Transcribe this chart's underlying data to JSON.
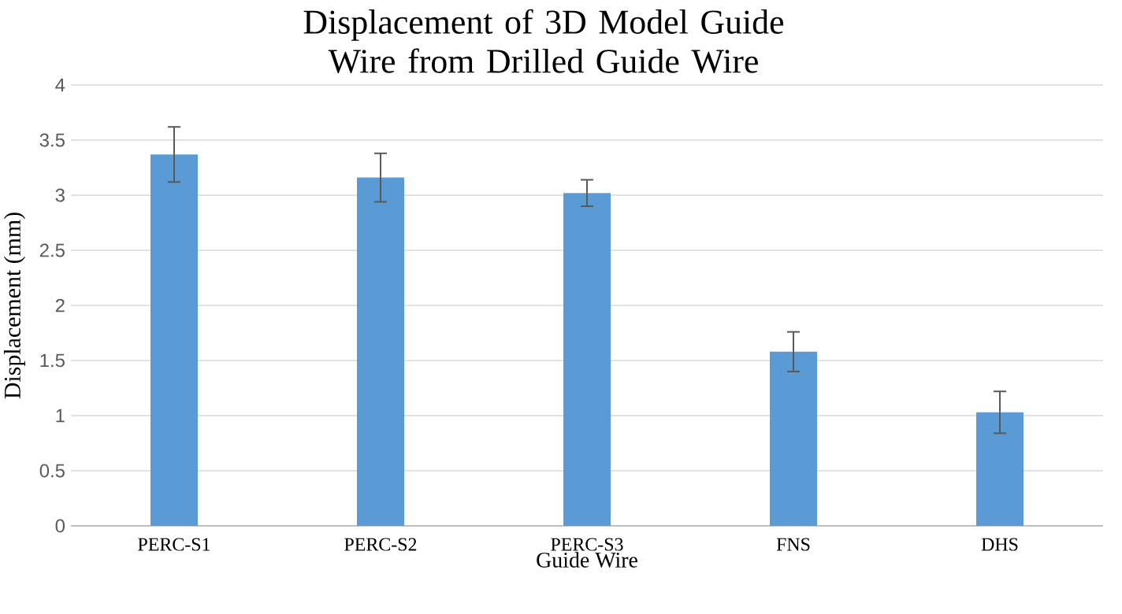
{
  "chart_data": {
    "type": "bar",
    "title": "Displacement of 3D Model Guide Wire from Drilled Guide Wire",
    "xlabel": "Guide Wire",
    "ylabel": "Displacement (mm)",
    "categories": [
      "PERC-S1",
      "PERC-S2",
      "PERC-S3",
      "FNS",
      "DHS"
    ],
    "values": [
      3.37,
      3.16,
      3.02,
      1.58,
      1.03
    ],
    "errors": [
      0.25,
      0.22,
      0.12,
      0.18,
      0.19
    ],
    "color": "#5b9bd5",
    "ylim": [
      0,
      4
    ],
    "yticks": [
      0,
      0.5,
      1,
      1.5,
      2,
      2.5,
      3,
      3.5,
      4
    ],
    "grid": "y"
  }
}
